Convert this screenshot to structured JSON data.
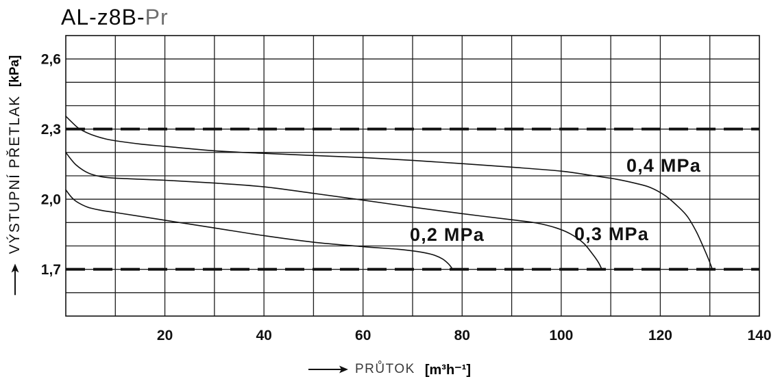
{
  "chart_data": {
    "type": "line",
    "title": "AL-z8B-Pr",
    "xlabel": "PRŮTOK",
    "xunit": "[m³h⁻¹]",
    "ylabel": "VÝSTUPNÍ PŘETLAK",
    "yunit": "[kPa]",
    "xlim": [
      0,
      140
    ],
    "ylim": [
      1.5,
      2.7
    ],
    "grid": true,
    "x_grid_step": 10,
    "y_grid_step": 0.1,
    "x_ticks": [
      {
        "value": 20,
        "label": "20"
      },
      {
        "value": 40,
        "label": "40"
      },
      {
        "value": 60,
        "label": "60"
      },
      {
        "value": 80,
        "label": "80"
      },
      {
        "value": 100,
        "label": "100"
      },
      {
        "value": 120,
        "label": "120"
      },
      {
        "value": 140,
        "label": "140"
      }
    ],
    "y_ticks": [
      {
        "value": 2.6,
        "label": "2,6"
      },
      {
        "value": 2.3,
        "label": "2,3"
      },
      {
        "value": 2.0,
        "label": "2,0"
      },
      {
        "value": 1.7,
        "label": "1,7"
      }
    ],
    "reference_lines": [
      {
        "y": 2.3,
        "style": "dashed"
      },
      {
        "y": 1.7,
        "style": "dashed"
      }
    ],
    "series": [
      {
        "name": "0,4 MPa",
        "points": [
          [
            0,
            2.355
          ],
          [
            1.2,
            2.33
          ],
          [
            2.5,
            2.305
          ],
          [
            4,
            2.287
          ],
          [
            6,
            2.27
          ],
          [
            8,
            2.258
          ],
          [
            10,
            2.25
          ],
          [
            15,
            2.236
          ],
          [
            20,
            2.226
          ],
          [
            30,
            2.207
          ],
          [
            40,
            2.196
          ],
          [
            50,
            2.187
          ],
          [
            60,
            2.178
          ],
          [
            70,
            2.166
          ],
          [
            80,
            2.152
          ],
          [
            90,
            2.137
          ],
          [
            100,
            2.12
          ],
          [
            106,
            2.102
          ],
          [
            111,
            2.086
          ],
          [
            115,
            2.068
          ],
          [
            118,
            2.05
          ],
          [
            121,
            2.015
          ],
          [
            123.5,
            1.97
          ],
          [
            125.5,
            1.925
          ],
          [
            127.3,
            1.86
          ],
          [
            128.8,
            1.79
          ],
          [
            129.8,
            1.74
          ],
          [
            130.5,
            1.7
          ]
        ]
      },
      {
        "name": "0,3 MPa",
        "points": [
          [
            0,
            2.2
          ],
          [
            1,
            2.172
          ],
          [
            2,
            2.148
          ],
          [
            3.5,
            2.124
          ],
          [
            5,
            2.108
          ],
          [
            7,
            2.097
          ],
          [
            10,
            2.09
          ],
          [
            20,
            2.081
          ],
          [
            30,
            2.069
          ],
          [
            40,
            2.053
          ],
          [
            50,
            2.025
          ],
          [
            60,
            1.996
          ],
          [
            70,
            1.966
          ],
          [
            80,
            1.938
          ],
          [
            90,
            1.912
          ],
          [
            95,
            1.898
          ],
          [
            99,
            1.877
          ],
          [
            102,
            1.85
          ],
          [
            104.5,
            1.812
          ],
          [
            106.3,
            1.766
          ],
          [
            107.5,
            1.73
          ],
          [
            108.2,
            1.7
          ]
        ]
      },
      {
        "name": "0,2 MPa",
        "points": [
          [
            0,
            2.04
          ],
          [
            1,
            2.012
          ],
          [
            2,
            1.992
          ],
          [
            3.5,
            1.974
          ],
          [
            5,
            1.962
          ],
          [
            7.5,
            1.951
          ],
          [
            10,
            1.943
          ],
          [
            20,
            1.91
          ],
          [
            30,
            1.877
          ],
          [
            40,
            1.844
          ],
          [
            50,
            1.816
          ],
          [
            60,
            1.797
          ],
          [
            67,
            1.786
          ],
          [
            71,
            1.776
          ],
          [
            74,
            1.763
          ],
          [
            76,
            1.745
          ],
          [
            77.3,
            1.722
          ],
          [
            78.1,
            1.7
          ]
        ]
      }
    ]
  },
  "icons": {
    "y_axis_arrow": "arrow-up-icon",
    "x_axis_arrow": "arrow-right-icon"
  },
  "colors": {
    "ink": "#111111",
    "grid": "#1c1c1c",
    "background": "#ffffff",
    "title_suffix": "#6e6e6e"
  }
}
